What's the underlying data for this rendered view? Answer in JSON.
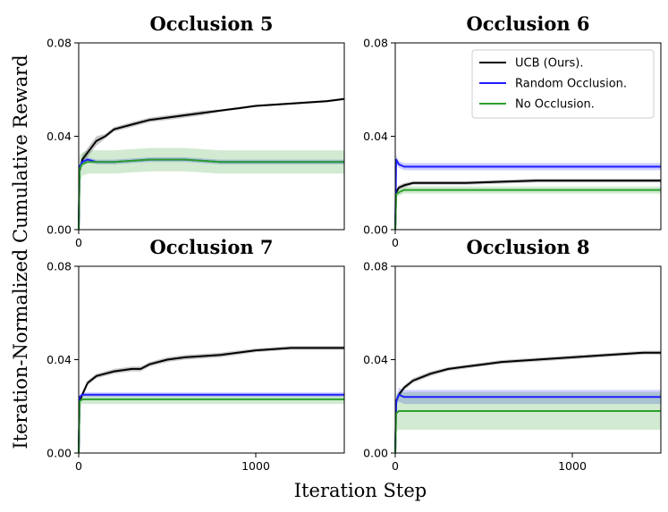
{
  "figure": {
    "xlabel": "Iteration Step",
    "ylabel": "Iteration-Normalized Cumulative Reward"
  },
  "legend": {
    "location": "upper right of Occlusion 6 panel",
    "entries": [
      {
        "label": "UCB (Ours).",
        "color": "#000000"
      },
      {
        "label": "Random Occlusion.",
        "color": "#1f1fff"
      },
      {
        "label": "No Occlusion.",
        "color": "#2ca02c"
      }
    ]
  },
  "chart_data": [
    {
      "type": "line",
      "title": "Occlusion 5",
      "xlim": [
        0,
        1500
      ],
      "ylim": [
        0.0,
        0.08
      ],
      "yticks": [
        "0.00",
        "0.04",
        "0.08"
      ],
      "xticks": [
        "0"
      ],
      "series": [
        {
          "name": "UCB (Ours).",
          "color": "#000000",
          "x": [
            0,
            5,
            20,
            50,
            100,
            150,
            200,
            300,
            400,
            500,
            600,
            700,
            800,
            900,
            1000,
            1200,
            1400,
            1500
          ],
          "y": [
            0.0,
            0.025,
            0.03,
            0.033,
            0.038,
            0.04,
            0.043,
            0.045,
            0.047,
            0.048,
            0.049,
            0.05,
            0.051,
            0.052,
            0.053,
            0.054,
            0.055,
            0.056
          ],
          "band": [
            0.001,
            0.001,
            0.002,
            0.002,
            0.002,
            0.001,
            0.001,
            0.001,
            0.001,
            0.001,
            0.001,
            0.001,
            0.0005,
            0.0005,
            0.0005,
            0.0005,
            0.0005,
            0.0005
          ]
        },
        {
          "name": "Random Occlusion.",
          "color": "#1f1fff",
          "x": [
            0,
            5,
            20,
            50,
            100,
            200,
            400,
            600,
            800,
            1000,
            1200,
            1500
          ],
          "y": [
            0.0,
            0.027,
            0.029,
            0.03,
            0.029,
            0.029,
            0.03,
            0.03,
            0.029,
            0.029,
            0.029,
            0.029
          ],
          "band": [
            0.001,
            0.001,
            0.001,
            0.001,
            0.001,
            0.001,
            0.001,
            0.001,
            0.001,
            0.001,
            0.001,
            0.001
          ]
        },
        {
          "name": "No Occlusion.",
          "color": "#2ca02c",
          "x": [
            0,
            5,
            20,
            50,
            100,
            200,
            400,
            600,
            800,
            1000,
            1200,
            1500
          ],
          "y": [
            0.0,
            0.026,
            0.028,
            0.029,
            0.029,
            0.029,
            0.03,
            0.03,
            0.029,
            0.029,
            0.029,
            0.029
          ],
          "band": [
            0.002,
            0.006,
            0.005,
            0.005,
            0.005,
            0.005,
            0.005,
            0.005,
            0.005,
            0.005,
            0.005,
            0.005
          ]
        }
      ]
    },
    {
      "type": "line",
      "title": "Occlusion 6",
      "xlim": [
        0,
        1500
      ],
      "ylim": [
        0.0,
        0.08
      ],
      "yticks": [
        "0.00",
        "0.04",
        "0.08"
      ],
      "xticks": [
        "0"
      ],
      "series": [
        {
          "name": "UCB (Ours).",
          "color": "#000000",
          "x": [
            0,
            5,
            20,
            50,
            100,
            200,
            400,
            600,
            800,
            1000,
            1200,
            1500
          ],
          "y": [
            0.0,
            0.016,
            0.018,
            0.019,
            0.02,
            0.02,
            0.02,
            0.0205,
            0.021,
            0.021,
            0.021,
            0.021
          ],
          "band": [
            0.001,
            0.001,
            0.001,
            0.001,
            0.0008,
            0.0008,
            0.0008,
            0.0008,
            0.0008,
            0.0008,
            0.0008,
            0.0008
          ]
        },
        {
          "name": "Random Occlusion.",
          "color": "#1f1fff",
          "x": [
            0,
            5,
            20,
            50,
            100,
            200,
            400,
            600,
            800,
            1000,
            1200,
            1500
          ],
          "y": [
            0.0,
            0.03,
            0.028,
            0.027,
            0.027,
            0.027,
            0.027,
            0.027,
            0.027,
            0.027,
            0.027,
            0.027
          ],
          "band": [
            0.001,
            0.002,
            0.0015,
            0.0015,
            0.0015,
            0.0015,
            0.0015,
            0.0015,
            0.0015,
            0.0015,
            0.0015,
            0.0015
          ]
        },
        {
          "name": "No Occlusion.",
          "color": "#2ca02c",
          "x": [
            0,
            5,
            20,
            50,
            100,
            200,
            400,
            600,
            800,
            1000,
            1200,
            1500
          ],
          "y": [
            0.0,
            0.015,
            0.016,
            0.017,
            0.017,
            0.017,
            0.017,
            0.017,
            0.017,
            0.017,
            0.017,
            0.017
          ],
          "band": [
            0.001,
            0.0015,
            0.0015,
            0.0015,
            0.0015,
            0.0015,
            0.0015,
            0.0015,
            0.0015,
            0.0015,
            0.0015,
            0.0015
          ]
        }
      ]
    },
    {
      "type": "line",
      "title": "Occlusion 7",
      "xlim": [
        0,
        1500
      ],
      "ylim": [
        0.0,
        0.08
      ],
      "yticks": [
        "0.00",
        "0.04",
        "0.08"
      ],
      "xticks": [
        "0",
        "1000"
      ],
      "series": [
        {
          "name": "UCB (Ours).",
          "color": "#000000",
          "x": [
            0,
            5,
            20,
            50,
            100,
            150,
            200,
            300,
            350,
            400,
            500,
            600,
            800,
            1000,
            1200,
            1400,
            1500
          ],
          "y": [
            0.0,
            0.022,
            0.025,
            0.03,
            0.033,
            0.034,
            0.035,
            0.036,
            0.036,
            0.038,
            0.04,
            0.041,
            0.042,
            0.044,
            0.045,
            0.045,
            0.045
          ],
          "band": [
            0.001,
            0.001,
            0.001,
            0.001,
            0.001,
            0.001,
            0.001,
            0.001,
            0.001,
            0.001,
            0.001,
            0.001,
            0.001,
            0.0008,
            0.0008,
            0.0008,
            0.0008
          ]
        },
        {
          "name": "Random Occlusion.",
          "color": "#1f1fff",
          "x": [
            0,
            5,
            20,
            50,
            100,
            200,
            400,
            600,
            800,
            1000,
            1200,
            1500
          ],
          "y": [
            0.0,
            0.024,
            0.025,
            0.025,
            0.025,
            0.025,
            0.025,
            0.025,
            0.025,
            0.025,
            0.025,
            0.025
          ],
          "band": [
            0.001,
            0.001,
            0.001,
            0.001,
            0.001,
            0.001,
            0.001,
            0.001,
            0.001,
            0.001,
            0.001,
            0.001
          ]
        },
        {
          "name": "No Occlusion.",
          "color": "#2ca02c",
          "x": [
            0,
            5,
            20,
            50,
            100,
            200,
            400,
            600,
            800,
            1000,
            1200,
            1500
          ],
          "y": [
            0.0,
            0.022,
            0.023,
            0.023,
            0.023,
            0.023,
            0.023,
            0.023,
            0.023,
            0.023,
            0.023,
            0.023
          ],
          "band": [
            0.002,
            0.003,
            0.002,
            0.002,
            0.002,
            0.002,
            0.002,
            0.002,
            0.002,
            0.002,
            0.002,
            0.002
          ]
        }
      ]
    },
    {
      "type": "line",
      "title": "Occlusion 8",
      "xlim": [
        0,
        1500
      ],
      "ylim": [
        0.0,
        0.08
      ],
      "yticks": [
        "0.00",
        "0.04",
        "0.08"
      ],
      "xticks": [
        "0",
        "1000"
      ],
      "series": [
        {
          "name": "UCB (Ours).",
          "color": "#000000",
          "x": [
            0,
            5,
            20,
            50,
            100,
            200,
            300,
            400,
            500,
            600,
            800,
            1000,
            1200,
            1400,
            1500
          ],
          "y": [
            0.0,
            0.022,
            0.025,
            0.028,
            0.031,
            0.034,
            0.036,
            0.037,
            0.038,
            0.039,
            0.04,
            0.041,
            0.042,
            0.043,
            0.043
          ],
          "band": [
            0.001,
            0.001,
            0.001,
            0.001,
            0.001,
            0.001,
            0.0008,
            0.0008,
            0.0008,
            0.0008,
            0.0008,
            0.0008,
            0.0008,
            0.0008,
            0.0008
          ]
        },
        {
          "name": "Random Occlusion.",
          "color": "#1f1fff",
          "x": [
            0,
            5,
            20,
            50,
            100,
            200,
            400,
            600,
            800,
            1000,
            1200,
            1500
          ],
          "y": [
            0.0,
            0.022,
            0.025,
            0.024,
            0.024,
            0.024,
            0.024,
            0.024,
            0.024,
            0.024,
            0.024,
            0.024
          ],
          "band": [
            0.001,
            0.002,
            0.003,
            0.003,
            0.003,
            0.003,
            0.003,
            0.003,
            0.003,
            0.003,
            0.003,
            0.003
          ]
        },
        {
          "name": "No Occlusion.",
          "color": "#2ca02c",
          "x": [
            0,
            5,
            20,
            50,
            100,
            200,
            400,
            600,
            800,
            1000,
            1200,
            1500
          ],
          "y": [
            0.0,
            0.017,
            0.018,
            0.018,
            0.018,
            0.018,
            0.018,
            0.018,
            0.018,
            0.018,
            0.018,
            0.018
          ],
          "band": [
            0.002,
            0.008,
            0.008,
            0.008,
            0.008,
            0.008,
            0.008,
            0.008,
            0.008,
            0.008,
            0.008,
            0.008
          ]
        }
      ]
    }
  ]
}
